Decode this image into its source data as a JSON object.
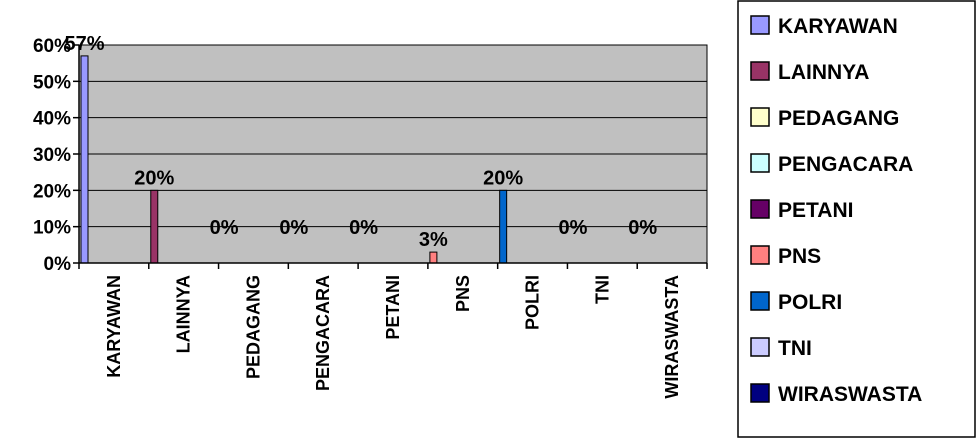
{
  "chart_data": {
    "type": "bar",
    "title": "",
    "xlabel": "",
    "ylabel": "",
    "ylim": [
      0,
      0.6
    ],
    "yticks": [
      "0%",
      "10%",
      "20%",
      "30%",
      "40%",
      "50%",
      "60%"
    ],
    "grid": true,
    "legend_position": "right",
    "categories": [
      "KARYAWAN",
      "LAINNYA",
      "PEDAGANG",
      "PENGACARA",
      "PETANI",
      "PNS",
      "POLRI",
      "TNI",
      "WIRASWASTA"
    ],
    "values": [
      0.57,
      0.2,
      0,
      0,
      0,
      0.03,
      0.2,
      0,
      0
    ],
    "data_labels": [
      "57%",
      "20%",
      "0%",
      "0%",
      "0%",
      "3%",
      "20%",
      "0%",
      "0%"
    ],
    "colors": [
      "#9999ff",
      "#993366",
      "#ffffcc",
      "#ccffff",
      "#660066",
      "#ff8080",
      "#0066cc",
      "#ccccff",
      "#000080"
    ],
    "plot_background": "#c0c0c0",
    "legend": [
      {
        "label": "KARYAWAN",
        "color": "#9999ff"
      },
      {
        "label": "LAINNYA",
        "color": "#993366"
      },
      {
        "label": "PEDAGANG",
        "color": "#ffffcc"
      },
      {
        "label": "PENGACARA",
        "color": "#ccffff"
      },
      {
        "label": "PETANI",
        "color": "#660066"
      },
      {
        "label": "PNS",
        "color": "#ff8080"
      },
      {
        "label": "POLRI",
        "color": "#0066cc"
      },
      {
        "label": "TNI",
        "color": "#ccccff"
      },
      {
        "label": "WIRASWASTA",
        "color": "#000080"
      }
    ]
  }
}
